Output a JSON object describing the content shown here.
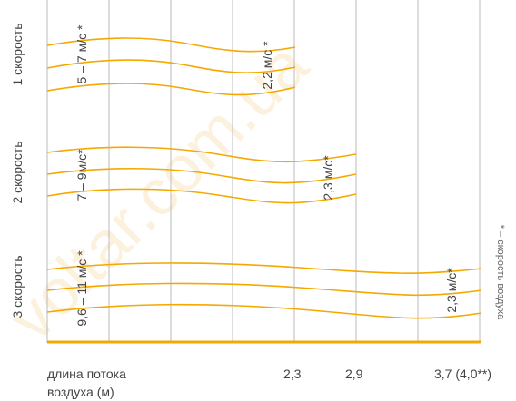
{
  "rows": [
    {
      "label": "1 скорость",
      "speed_label": "5 – 7 м/с *",
      "end_label": "2,2 м/с *"
    },
    {
      "label": "2 скорость",
      "speed_label": "7 – 9м/с*",
      "end_label": "2,3 м/с*"
    },
    {
      "label": "3 скорость",
      "speed_label": "9,6 – 11 м/с *",
      "end_label": "2,3 м/с*"
    }
  ],
  "x_axis": {
    "title_line1": "длина потока",
    "title_line2": "воздуха (м)",
    "ticks": [
      "2,3",
      "2,9",
      "3,7 (4,0**)"
    ]
  },
  "footnote": "* – скорость воздуха",
  "watermark": "voltar.com.ua",
  "colors": {
    "flow": "#f5a800",
    "grid": "#bbbbbb",
    "baseline": "#f5a800"
  }
}
